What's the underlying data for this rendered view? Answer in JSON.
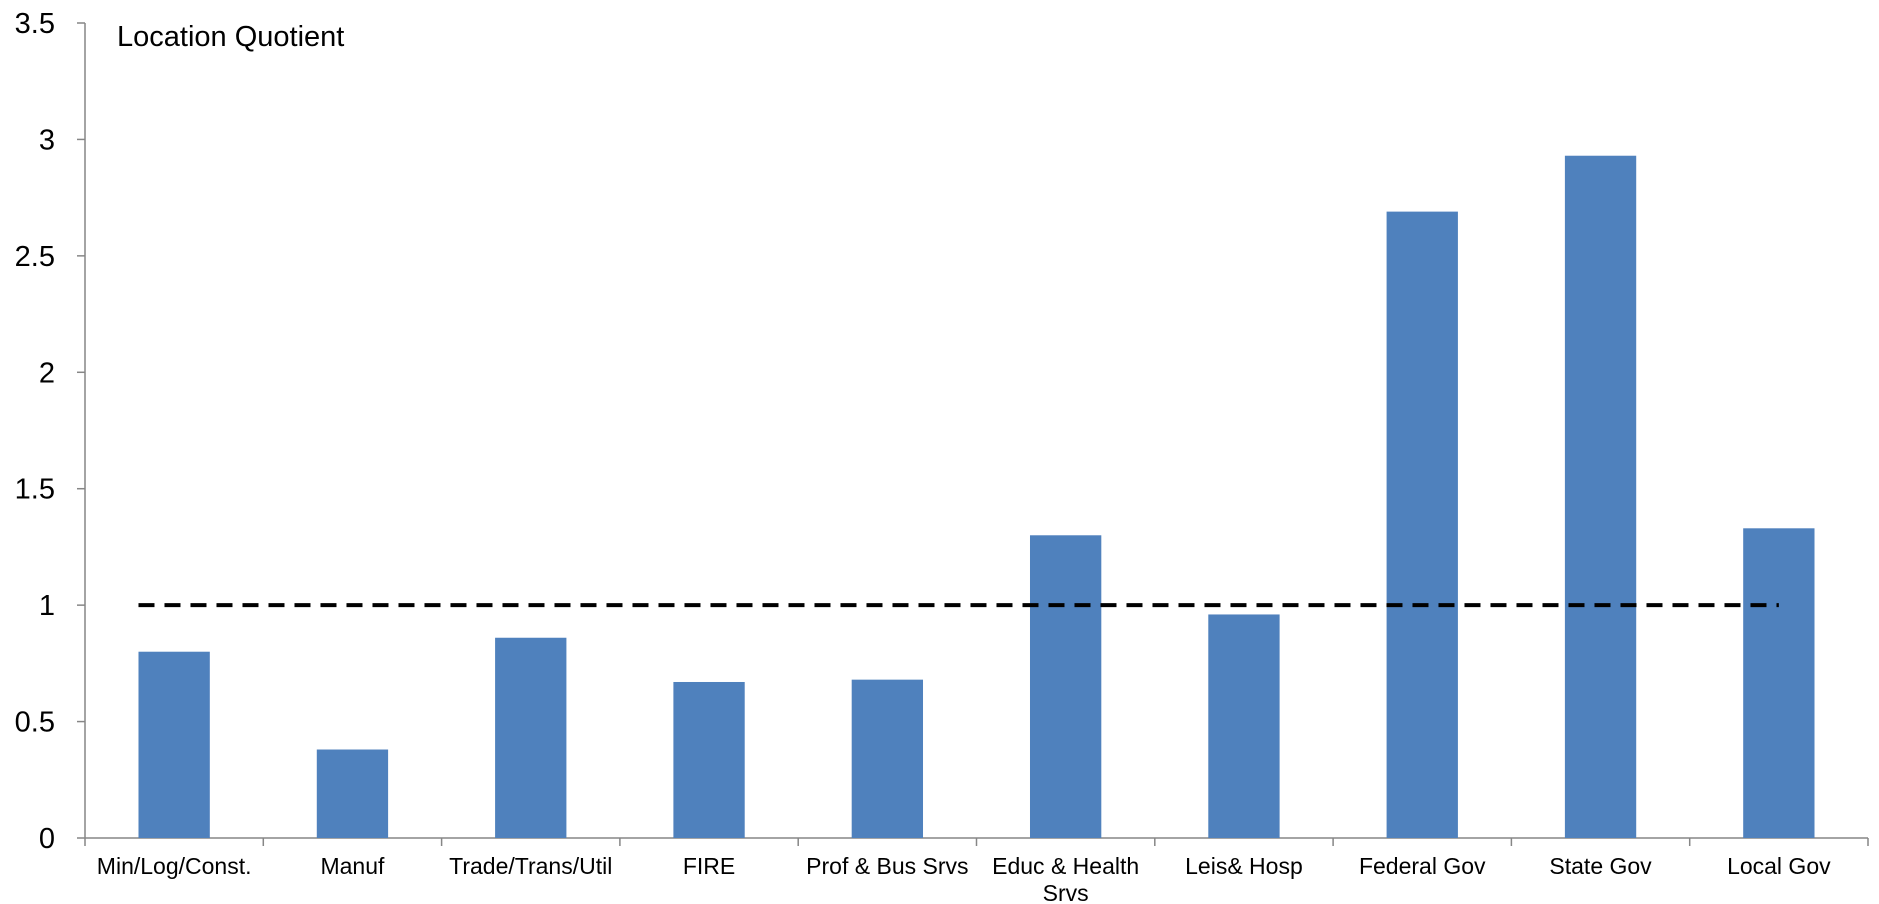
{
  "chart_data": {
    "type": "bar",
    "title": "Location Quotient",
    "categories": [
      "Min/Log/Const.",
      "Manuf",
      "Trade/Trans/Util",
      "FIRE",
      "Prof & Bus Srvs",
      "Educ & Health Srvs",
      "Leis& Hosp",
      "Federal Gov",
      "State Gov",
      "Local Gov"
    ],
    "values": [
      0.8,
      0.38,
      0.86,
      0.67,
      0.68,
      1.3,
      0.96,
      2.69,
      2.93,
      1.33
    ],
    "reference_line": {
      "y": 1,
      "style": "dashed",
      "color": "#000000"
    },
    "ylim": [
      0,
      3.5
    ],
    "yticks": [
      0,
      0.5,
      1,
      1.5,
      2,
      2.5,
      3,
      3.5
    ],
    "ytick_labels": [
      "0",
      "0.5",
      "1",
      "1.5",
      "2",
      "2.5",
      "3",
      "3.5"
    ],
    "xlabel": "",
    "ylabel": "",
    "grid": false,
    "bar_color": "#4f81bd",
    "axis_color": "#868686"
  }
}
